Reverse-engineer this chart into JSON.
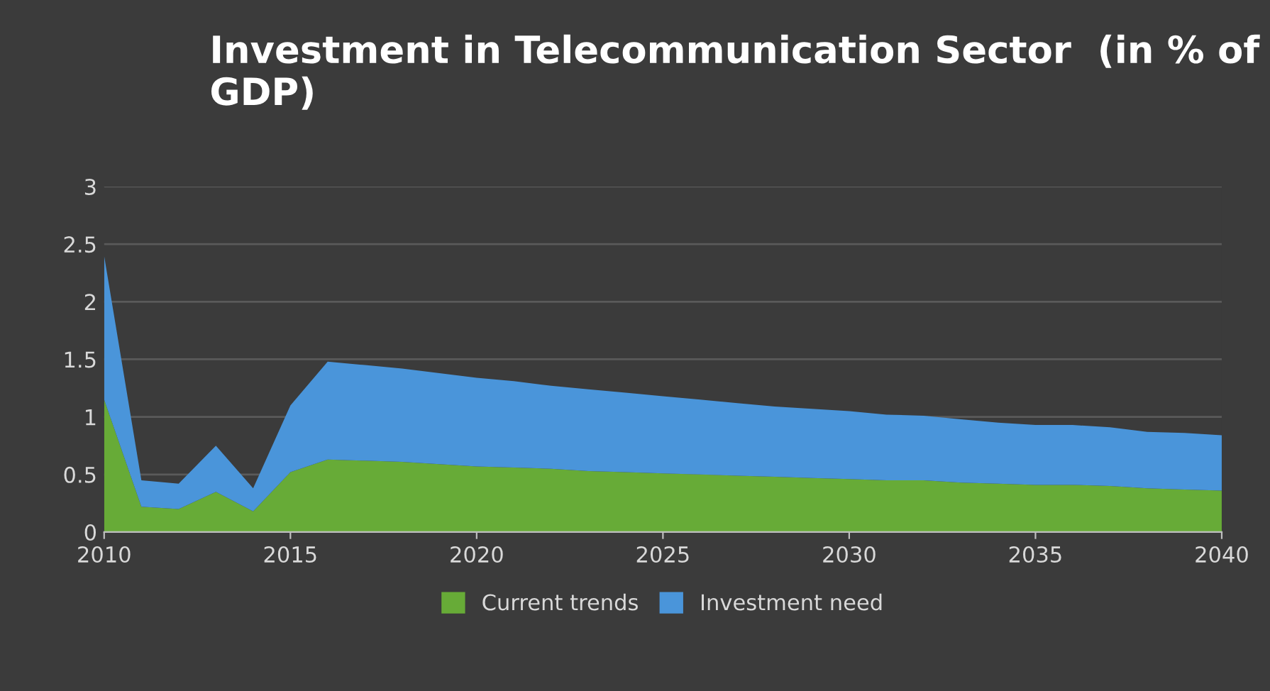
{
  "chart_data": {
    "type": "area",
    "stacked": true,
    "title": "Investment in Telecommunication Sector  (in % of GDP)",
    "x": [
      2010,
      2011,
      2012,
      2013,
      2014,
      2015,
      2016,
      2017,
      2018,
      2019,
      2020,
      2021,
      2022,
      2023,
      2024,
      2025,
      2026,
      2027,
      2028,
      2029,
      2030,
      2031,
      2032,
      2033,
      2034,
      2035,
      2036,
      2037,
      2038,
      2039,
      2040
    ],
    "series": [
      {
        "name": "Current trends",
        "color": "#67ab37",
        "values": [
          1.15,
          0.22,
          0.2,
          0.35,
          0.18,
          0.52,
          0.63,
          0.62,
          0.61,
          0.59,
          0.57,
          0.56,
          0.55,
          0.53,
          0.52,
          0.51,
          0.5,
          0.49,
          0.48,
          0.47,
          0.46,
          0.45,
          0.45,
          0.43,
          0.42,
          0.41,
          0.41,
          0.4,
          0.38,
          0.37,
          0.36
        ]
      },
      {
        "name": "Investment need",
        "color": "#4a95da",
        "values": [
          1.25,
          0.23,
          0.22,
          0.4,
          0.2,
          0.58,
          0.85,
          0.83,
          0.81,
          0.79,
          0.77,
          0.75,
          0.72,
          0.71,
          0.69,
          0.67,
          0.65,
          0.63,
          0.61,
          0.6,
          0.59,
          0.57,
          0.56,
          0.55,
          0.53,
          0.52,
          0.52,
          0.51,
          0.49,
          0.49,
          0.48
        ]
      }
    ],
    "xlim": [
      2010,
      2040
    ],
    "xticks": [
      2010,
      2015,
      2020,
      2025,
      2030,
      2035,
      2040
    ],
    "ylim": [
      0,
      3
    ],
    "yticks": [
      0,
      0.5,
      1,
      1.5,
      2,
      2.5,
      3
    ],
    "grid": "y",
    "legend": "bottom"
  }
}
